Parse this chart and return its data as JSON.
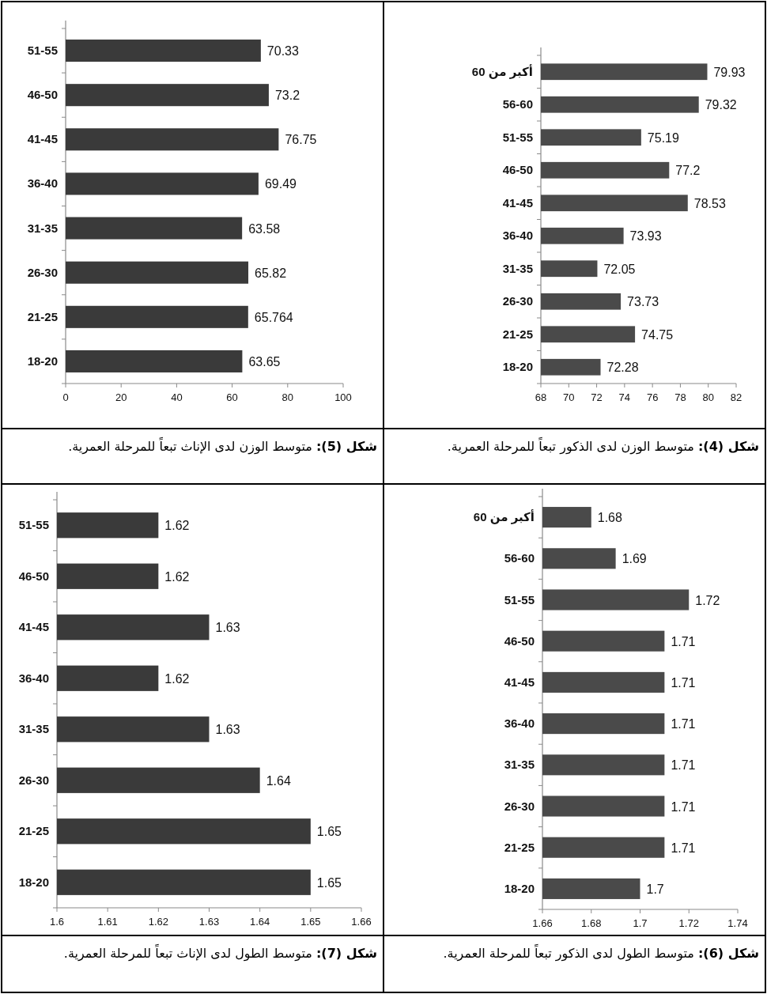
{
  "chart_data": [
    {
      "type": "bar",
      "orientation": "horizontal",
      "title": "**شكل (4):** متوسط الوزن لدى الذكور تبعاً للمرحلة العمرية.",
      "categories": [
        "أكبر من 60",
        "56-60",
        "51-55",
        "46-50",
        "41-45",
        "36-40",
        "31-35",
        "26-30",
        "21-25",
        "18-20"
      ],
      "values": [
        79.93,
        79.32,
        75.19,
        77.2,
        78.53,
        73.93,
        72.05,
        73.73,
        74.75,
        72.28
      ],
      "color": "#4a4a4a",
      "xlim": [
        68,
        82
      ],
      "xticks": [
        68,
        70,
        72,
        74,
        76,
        78,
        80,
        82
      ],
      "data_labels": true
    },
    {
      "type": "bar",
      "orientation": "horizontal",
      "title": "**شكل (5):** متوسط الوزن لدى الإناث تبعاً للمرحلة العمرية.",
      "categories": [
        "51-55",
        "46-50",
        "41-45",
        "36-40",
        "31-35",
        "26-30",
        "21-25",
        "18-20"
      ],
      "values": [
        70.33,
        73.2,
        76.75,
        69.49,
        63.58,
        65.82,
        65.764,
        63.65
      ],
      "color": "#3a3a3a",
      "xlim": [
        0,
        100
      ],
      "xticks": [
        0,
        20,
        40,
        60,
        80,
        100
      ],
      "data_labels": true
    },
    {
      "type": "bar",
      "orientation": "horizontal",
      "title": "**شكل (6):** متوسط الطول لدى الذكور تبعاً للمرحلة العمرية.",
      "categories": [
        "أكبر من 60",
        "56-60",
        "51-55",
        "46-50",
        "41-45",
        "36-40",
        "31-35",
        "26-30",
        "21-25",
        "18-20"
      ],
      "values": [
        1.68,
        1.69,
        1.72,
        1.71,
        1.71,
        1.71,
        1.71,
        1.71,
        1.71,
        1.7
      ],
      "color": "#4a4a4a",
      "xlim": [
        1.66,
        1.74
      ],
      "xticks": [
        1.66,
        1.68,
        1.7,
        1.72,
        1.74
      ],
      "data_labels": true
    },
    {
      "type": "bar",
      "orientation": "horizontal",
      "title": "**شكل (7):** متوسط الطول لدى الإناث تبعاً للمرحلة العمرية.",
      "categories": [
        "51-55",
        "46-50",
        "41-45",
        "36-40",
        "31-35",
        "26-30",
        "21-25",
        "18-20"
      ],
      "values": [
        1.62,
        1.62,
        1.63,
        1.62,
        1.63,
        1.64,
        1.65,
        1.65
      ],
      "color": "#3a3a3a",
      "xlim": [
        1.6,
        1.66
      ],
      "xticks": [
        1.6,
        1.61,
        1.62,
        1.63,
        1.64,
        1.65,
        1.66
      ],
      "data_labels": true
    }
  ]
}
